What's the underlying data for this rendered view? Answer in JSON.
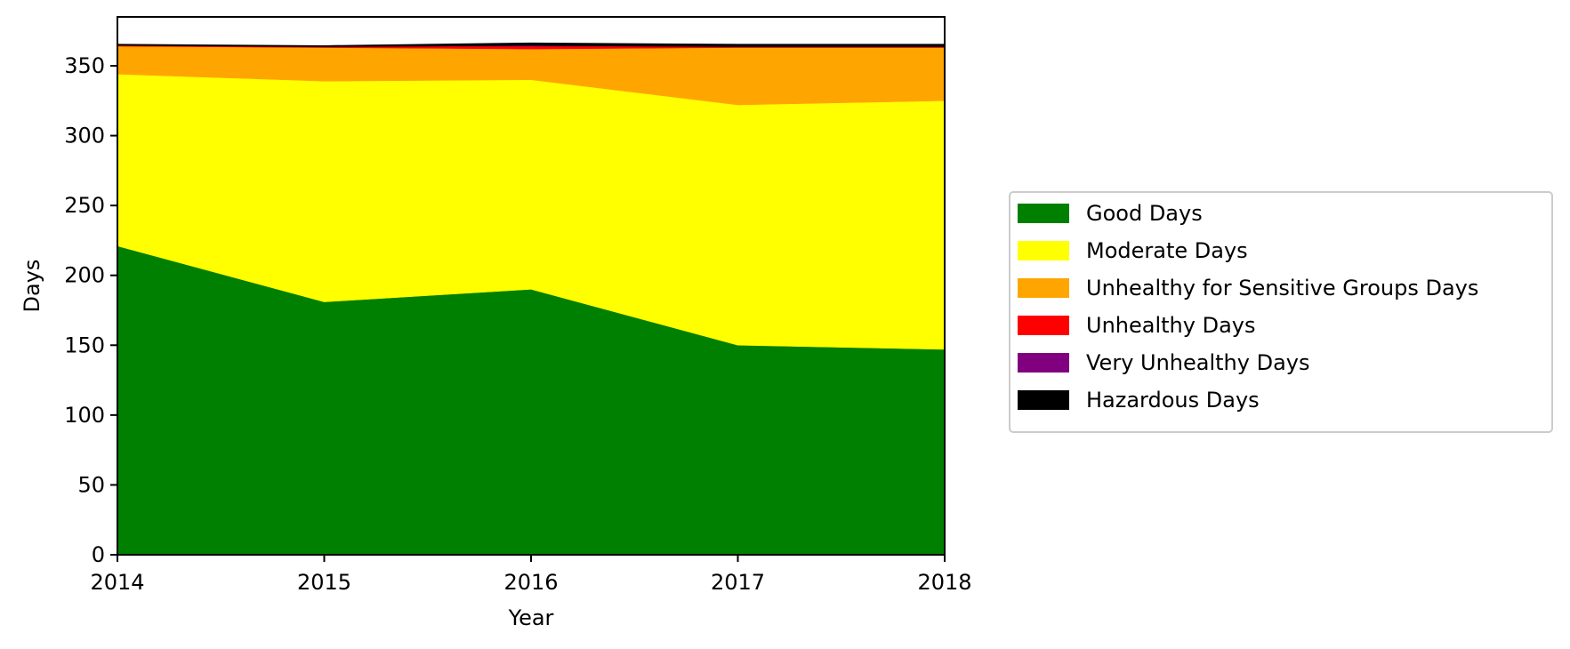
{
  "chart_data": {
    "type": "area",
    "stacked": true,
    "x": [
      2014,
      2015,
      2016,
      2017,
      2018
    ],
    "xlabel": "Year",
    "ylabel": "Days",
    "xlim": [
      2014,
      2018
    ],
    "ylim": [
      0,
      385
    ],
    "xticks": [
      "2014",
      "2015",
      "2016",
      "2017",
      "2018"
    ],
    "yticks": [
      "0",
      "50",
      "100",
      "150",
      "200",
      "250",
      "300",
      "350"
    ],
    "grid": false,
    "legend_position": "right",
    "series": [
      {
        "name": "Good Days",
        "color": "#008000",
        "values": [
          221,
          181,
          190,
          150,
          147
        ]
      },
      {
        "name": "Moderate Days",
        "color": "#ffff00",
        "values": [
          123,
          158,
          150,
          172,
          178
        ]
      },
      {
        "name": "Unhealthy for Sensitive Groups Days",
        "color": "#ffa500",
        "values": [
          20,
          24,
          22,
          41,
          38
        ]
      },
      {
        "name": "Unhealthy Days",
        "color": "#ff0000",
        "values": [
          1,
          1,
          2,
          1,
          1
        ]
      },
      {
        "name": "Very Unhealthy Days",
        "color": "#800080",
        "values": [
          0,
          0,
          1,
          0,
          0
        ]
      },
      {
        "name": "Hazardous Days",
        "color": "#000000",
        "values": [
          0,
          0,
          1,
          1,
          1
        ]
      }
    ]
  }
}
